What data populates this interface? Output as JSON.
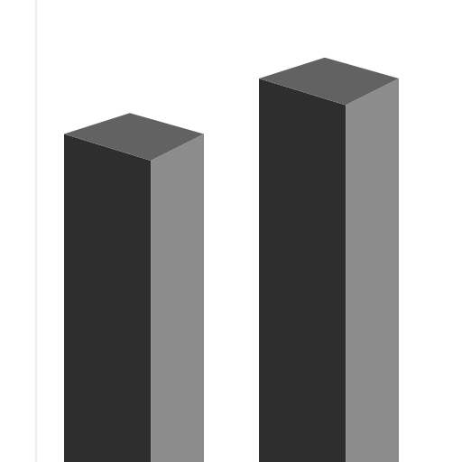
{
  "chart_data": {
    "type": "bar",
    "categories": [
      null,
      null
    ],
    "values": [
      71,
      83
    ],
    "color": "#2e2e2e",
    "ylim": [
      0,
      100
    ],
    "yticks": [],
    "tick_labels": false,
    "grid": false
  }
}
